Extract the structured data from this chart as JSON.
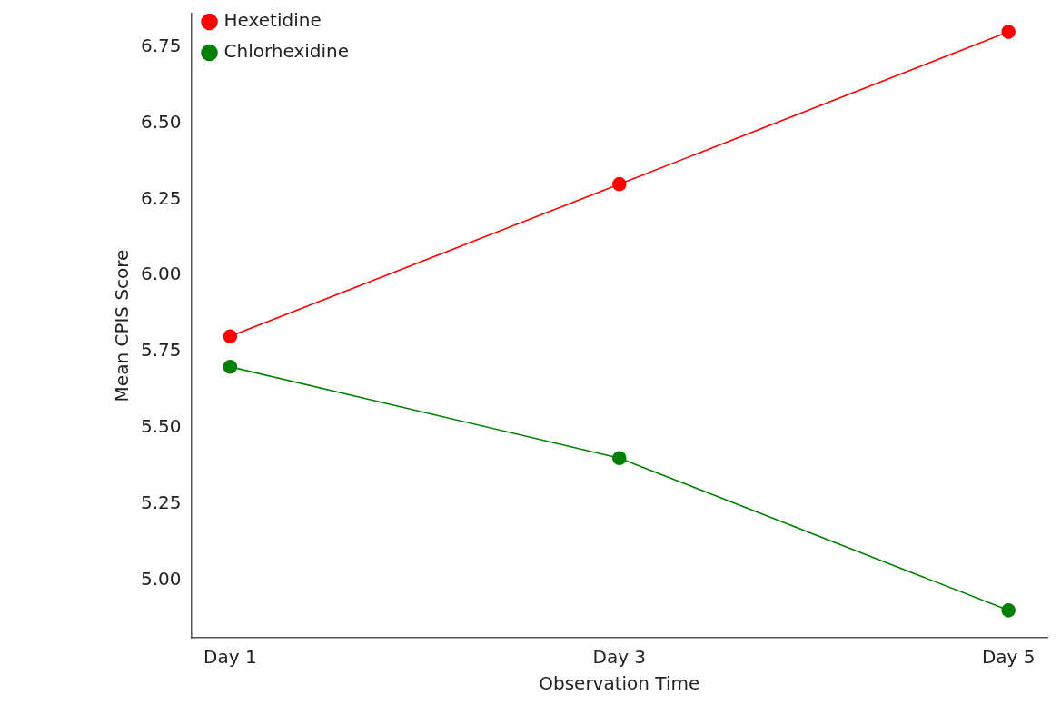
{
  "chart_data": {
    "type": "line",
    "xlabel": "Observation Time",
    "ylabel": "Mean CPIS Score",
    "categories": [
      "Day 1",
      "Day 3",
      "Day 5"
    ],
    "series": [
      {
        "name": "Hexetidine",
        "color": "#ff0000",
        "values": [
          5.8,
          6.3,
          6.8
        ]
      },
      {
        "name": "Chlorhexidine",
        "color": "#008000",
        "values": [
          5.7,
          5.4,
          4.9
        ]
      }
    ],
    "ylim": [
      4.81,
      6.86
    ],
    "yticks": [
      {
        "value": 5.0,
        "label": "5.00"
      },
      {
        "value": 5.25,
        "label": "5.25"
      },
      {
        "value": 5.5,
        "label": "5.50"
      },
      {
        "value": 5.75,
        "label": "5.75"
      },
      {
        "value": 6.0,
        "label": "6.00"
      },
      {
        "value": 6.25,
        "label": "6.25"
      },
      {
        "value": 6.5,
        "label": "6.50"
      },
      {
        "value": 6.75,
        "label": "6.75"
      }
    ],
    "legend": "top left",
    "marker": "circle",
    "line_style": "solid"
  }
}
